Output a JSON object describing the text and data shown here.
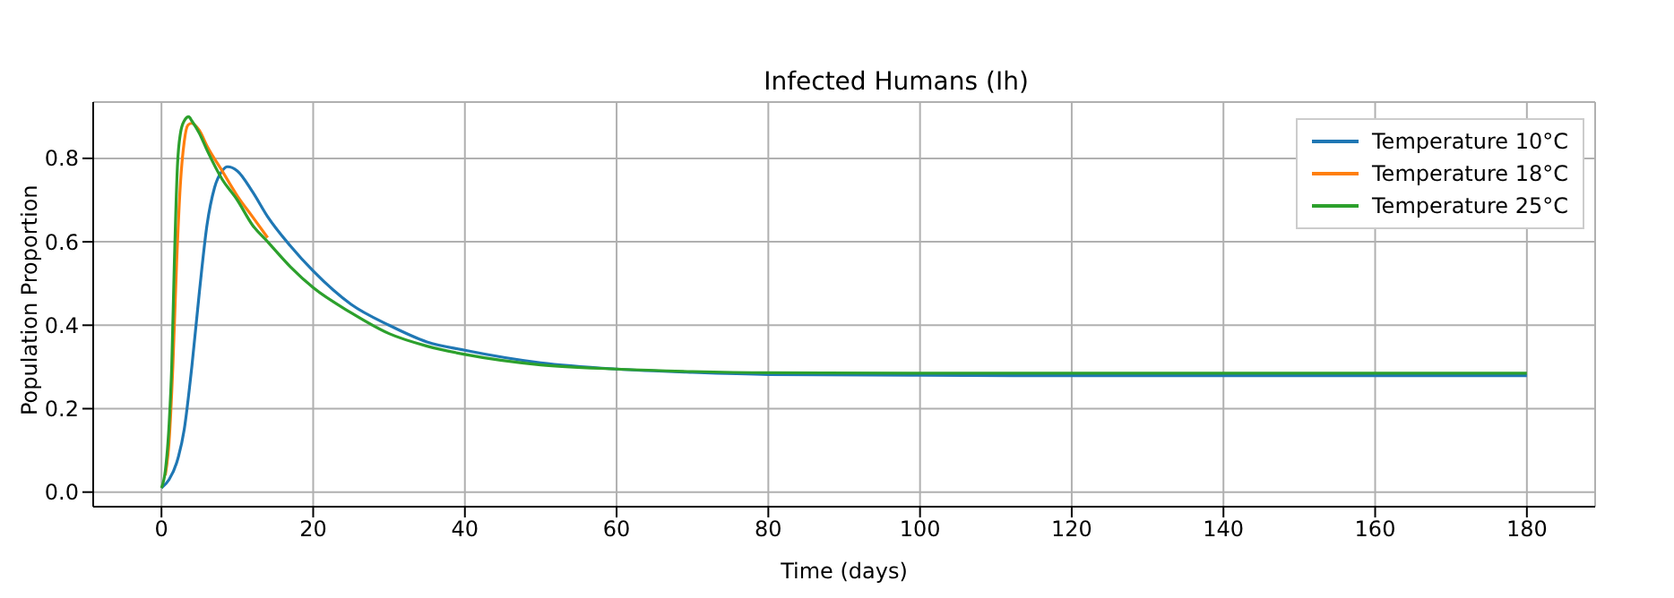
{
  "chart_data": {
    "type": "line",
    "title": "Infected Humans (Ih)",
    "xlabel": "Time (days)",
    "ylabel": "Population Proportion",
    "xlim": [
      -9,
      189
    ],
    "ylim": [
      -0.035,
      0.935
    ],
    "xticks": [
      0,
      20,
      40,
      60,
      80,
      100,
      120,
      140,
      160,
      180
    ],
    "yticks": [
      {
        "value": 0,
        "label": "0.0"
      },
      0.2,
      0.4,
      0.6,
      0.8
    ],
    "grid": true,
    "legend": "top right",
    "marker": "none",
    "line_style": "solid",
    "series": [
      {
        "name": "Temperature 10°C",
        "color": "#1f77b4",
        "x": [
          0,
          1,
          2,
          3,
          4,
          5,
          6,
          7,
          8,
          8.7,
          10,
          12,
          14,
          17,
          20,
          25,
          30,
          35,
          40,
          50,
          60,
          70,
          80,
          100,
          120,
          150,
          180
        ],
        "values": [
          0.01,
          0.03,
          0.07,
          0.15,
          0.3,
          0.48,
          0.64,
          0.73,
          0.77,
          0.78,
          0.77,
          0.72,
          0.66,
          0.59,
          0.53,
          0.45,
          0.4,
          0.36,
          0.34,
          0.31,
          0.295,
          0.287,
          0.282,
          0.28,
          0.279,
          0.279,
          0.279
        ]
      },
      {
        "name": "Temperature 18°C",
        "color": "#ff7f0e",
        "x": [
          0.5,
          1,
          1.5,
          2,
          2.5,
          3,
          3.5,
          4,
          5,
          6,
          8,
          10,
          12,
          14
        ],
        "values": [
          0.04,
          0.12,
          0.3,
          0.55,
          0.74,
          0.84,
          0.88,
          0.884,
          0.867,
          0.83,
          0.77,
          0.71,
          0.66,
          0.61
        ]
      },
      {
        "name": "Temperature 25°C",
        "color": "#2ca02c",
        "x": [
          0,
          0.5,
          1,
          1.35,
          1.7,
          2.1,
          2.5,
          3,
          3.6,
          4,
          5,
          6,
          8,
          10,
          12,
          14,
          17,
          20,
          25,
          30,
          35,
          40,
          50,
          60,
          70,
          80,
          100,
          120,
          150,
          180
        ],
        "values": [
          0.01,
          0.05,
          0.16,
          0.3,
          0.55,
          0.78,
          0.86,
          0.89,
          0.9,
          0.89,
          0.86,
          0.82,
          0.75,
          0.7,
          0.64,
          0.6,
          0.54,
          0.49,
          0.43,
          0.38,
          0.35,
          0.33,
          0.305,
          0.295,
          0.289,
          0.286,
          0.285,
          0.285,
          0.285,
          0.285
        ]
      }
    ]
  }
}
